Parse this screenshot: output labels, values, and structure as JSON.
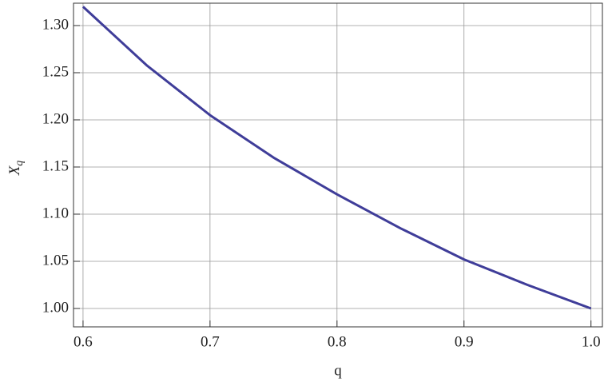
{
  "chart_data": {
    "type": "line",
    "xlabel": "q",
    "ylabel": "X",
    "ylabel_sub": "q",
    "x": [
      0.6,
      0.65,
      0.7,
      0.75,
      0.8,
      0.85,
      0.9,
      0.95,
      1.0
    ],
    "series": [
      {
        "color": "#3f3d99",
        "values": [
          1.32,
          1.258,
          1.205,
          1.16,
          1.121,
          1.085,
          1.052,
          1.025,
          1.0
        ]
      }
    ],
    "xlim": [
      0.5925,
      1.009
    ],
    "ylim": [
      0.9805,
      1.3237
    ],
    "xticks": [
      0.6,
      0.7,
      0.8,
      0.9,
      {
        "value": 1.0,
        "label": "1.0"
      }
    ],
    "yticks": [
      {
        "value": 1.0,
        "label": "1.00"
      },
      {
        "value": 1.05,
        "label": "1.05"
      },
      {
        "value": 1.1,
        "label": "1.10"
      },
      {
        "value": 1.15,
        "label": "1.15"
      },
      {
        "value": 1.2,
        "label": "1.20"
      },
      {
        "value": 1.25,
        "label": "1.25"
      },
      {
        "value": 1.3,
        "label": "1.30"
      }
    ],
    "grid": true
  }
}
